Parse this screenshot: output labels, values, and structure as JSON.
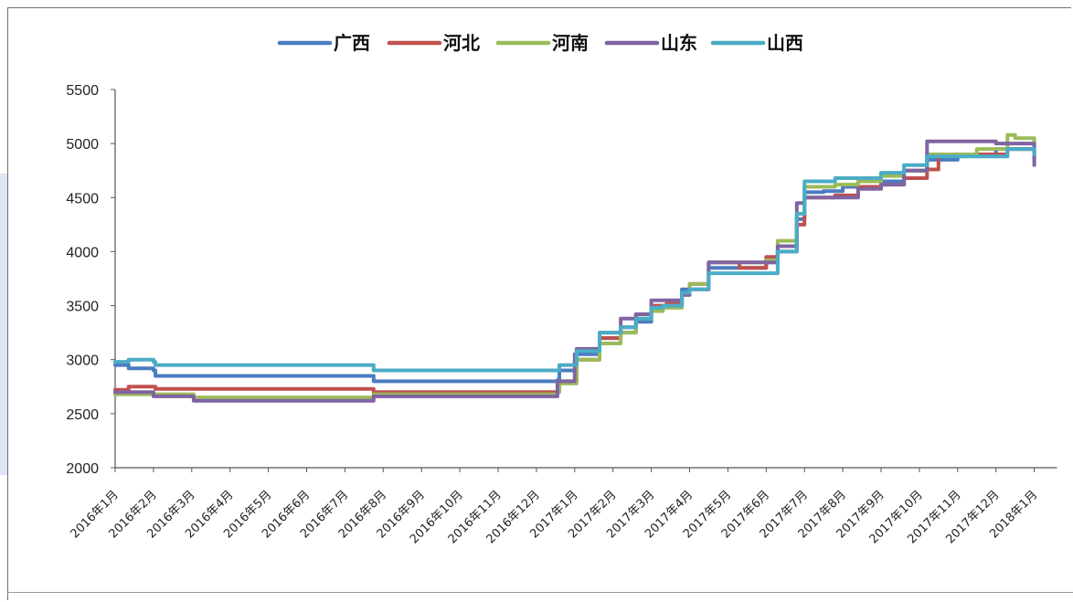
{
  "chart_data": {
    "type": "line",
    "title": "",
    "xlabel": "",
    "ylabel": "",
    "ylim": [
      2000,
      5500
    ],
    "yticks": [
      2000,
      2500,
      3000,
      3500,
      4000,
      4500,
      5000,
      5500
    ],
    "categories": [
      "2016年1月",
      "2016年2月",
      "2016年3月",
      "2016年4月",
      "2016年5月",
      "2016年6月",
      "2016年7月",
      "2016年8月",
      "2016年9月",
      "2016年10月",
      "2016年11月",
      "2016年12月",
      "2017年1月",
      "2017年2月",
      "2017年3月",
      "2017年4月",
      "2017年5月",
      "2017年6月",
      "2017年7月",
      "2017年8月",
      "2017年9月",
      "2017年10月",
      "2017年11月",
      "2017年12月",
      "2018年1月"
    ],
    "legend_position": "top-center",
    "grid": false,
    "series": [
      {
        "name": "广西",
        "color": "#4a7cc0",
        "points": [
          [
            0,
            2950
          ],
          [
            0.35,
            2920
          ],
          [
            1,
            2900
          ],
          [
            1.05,
            2850
          ],
          [
            5,
            2850
          ],
          [
            6,
            2850
          ],
          [
            6.7,
            2850
          ],
          [
            6.75,
            2800
          ],
          [
            11,
            2800
          ],
          [
            11.55,
            2810
          ],
          [
            11.6,
            2900
          ],
          [
            12.05,
            3050
          ],
          [
            12.6,
            3050
          ],
          [
            12.65,
            3200
          ],
          [
            13.2,
            3250
          ],
          [
            13.6,
            3350
          ],
          [
            14,
            3450
          ],
          [
            14.3,
            3500
          ],
          [
            14.8,
            3650
          ],
          [
            15,
            3700
          ],
          [
            15.5,
            3850
          ],
          [
            17,
            3900
          ],
          [
            17.3,
            4000
          ],
          [
            17.8,
            4300
          ],
          [
            18,
            4550
          ],
          [
            18.5,
            4560
          ],
          [
            19,
            4600
          ],
          [
            20,
            4650
          ],
          [
            20.6,
            4750
          ],
          [
            21.2,
            4850
          ],
          [
            22,
            4900
          ],
          [
            23,
            4950
          ],
          [
            24,
            4990
          ]
        ]
      },
      {
        "name": "河北",
        "color": "#c0504d",
        "points": [
          [
            0,
            2720
          ],
          [
            0.35,
            2750
          ],
          [
            1,
            2750
          ],
          [
            1.05,
            2730
          ],
          [
            6,
            2730
          ],
          [
            6.7,
            2730
          ],
          [
            6.75,
            2700
          ],
          [
            11,
            2700
          ],
          [
            11.55,
            2740
          ],
          [
            11.6,
            2800
          ],
          [
            12.05,
            3000
          ],
          [
            12.6,
            3000
          ],
          [
            12.65,
            3200
          ],
          [
            13.2,
            3300
          ],
          [
            13.6,
            3420
          ],
          [
            14,
            3500
          ],
          [
            14.4,
            3520
          ],
          [
            14.8,
            3600
          ],
          [
            15,
            3700
          ],
          [
            15.5,
            3900
          ],
          [
            16.3,
            3850
          ],
          [
            17,
            3950
          ],
          [
            17.3,
            4050
          ],
          [
            17.8,
            4250
          ],
          [
            18,
            4500
          ],
          [
            18.8,
            4520
          ],
          [
            19.4,
            4600
          ],
          [
            20,
            4620
          ],
          [
            20.6,
            4680
          ],
          [
            21.2,
            4760
          ],
          [
            21.5,
            4900
          ],
          [
            22.5,
            4900
          ],
          [
            23.3,
            4950
          ],
          [
            24,
            4850
          ]
        ]
      },
      {
        "name": "河南",
        "color": "#9bbb59",
        "points": [
          [
            0,
            2680
          ],
          [
            1,
            2680
          ],
          [
            2,
            2680
          ],
          [
            2.05,
            2650
          ],
          [
            6.7,
            2650
          ],
          [
            6.75,
            2680
          ],
          [
            11,
            2680
          ],
          [
            11.55,
            2700
          ],
          [
            11.6,
            2780
          ],
          [
            12.05,
            3000
          ],
          [
            12.6,
            3000
          ],
          [
            12.65,
            3150
          ],
          [
            13.2,
            3250
          ],
          [
            13.6,
            3380
          ],
          [
            14,
            3450
          ],
          [
            14.3,
            3480
          ],
          [
            14.8,
            3600
          ],
          [
            15,
            3700
          ],
          [
            15.5,
            3900
          ],
          [
            17,
            3920
          ],
          [
            17.3,
            4100
          ],
          [
            17.8,
            4350
          ],
          [
            18,
            4600
          ],
          [
            18.8,
            4620
          ],
          [
            19.4,
            4650
          ],
          [
            20,
            4700
          ],
          [
            20.6,
            4750
          ],
          [
            21.2,
            4900
          ],
          [
            22.5,
            4950
          ],
          [
            23.2,
            4950
          ],
          [
            23.3,
            5080
          ],
          [
            23.5,
            5050
          ],
          [
            24,
            5000
          ]
        ]
      },
      {
        "name": "山东",
        "color": "#8064a2",
        "points": [
          [
            0,
            2700
          ],
          [
            0.4,
            2700
          ],
          [
            1,
            2660
          ],
          [
            2,
            2660
          ],
          [
            2.05,
            2620
          ],
          [
            6.7,
            2620
          ],
          [
            6.75,
            2660
          ],
          [
            11,
            2660
          ],
          [
            11.55,
            2800
          ],
          [
            12,
            3050
          ],
          [
            12.05,
            3100
          ],
          [
            12.6,
            3100
          ],
          [
            12.65,
            3250
          ],
          [
            13.2,
            3380
          ],
          [
            13.6,
            3420
          ],
          [
            14,
            3550
          ],
          [
            14.3,
            3550
          ],
          [
            14.8,
            3600
          ],
          [
            15,
            3650
          ],
          [
            15.5,
            3900
          ],
          [
            17,
            3900
          ],
          [
            17.3,
            4050
          ],
          [
            17.8,
            4450
          ],
          [
            18,
            4500
          ],
          [
            18.8,
            4500
          ],
          [
            19.4,
            4580
          ],
          [
            20,
            4620
          ],
          [
            20.6,
            4750
          ],
          [
            21.2,
            5020
          ],
          [
            22.5,
            5020
          ],
          [
            23,
            5000
          ],
          [
            24,
            4800
          ]
        ]
      },
      {
        "name": "山西",
        "color": "#4bacc6",
        "points": [
          [
            0,
            2980
          ],
          [
            0.35,
            3000
          ],
          [
            1,
            2980
          ],
          [
            1.05,
            2950
          ],
          [
            5,
            2950
          ],
          [
            6.7,
            2950
          ],
          [
            6.75,
            2900
          ],
          [
            11,
            2900
          ],
          [
            11.55,
            2900
          ],
          [
            11.6,
            2950
          ],
          [
            12.05,
            3080
          ],
          [
            12.6,
            3080
          ],
          [
            12.65,
            3250
          ],
          [
            13.2,
            3300
          ],
          [
            13.6,
            3380
          ],
          [
            14,
            3480
          ],
          [
            14.3,
            3500
          ],
          [
            14.8,
            3620
          ],
          [
            15,
            3650
          ],
          [
            15.5,
            3800
          ],
          [
            17,
            3800
          ],
          [
            17.3,
            4000
          ],
          [
            17.8,
            4350
          ],
          [
            18,
            4650
          ],
          [
            18.8,
            4680
          ],
          [
            19.4,
            4680
          ],
          [
            20,
            4730
          ],
          [
            20.6,
            4800
          ],
          [
            21.2,
            4880
          ],
          [
            22.5,
            4880
          ],
          [
            23.3,
            4950
          ],
          [
            24,
            4900
          ]
        ]
      }
    ]
  }
}
